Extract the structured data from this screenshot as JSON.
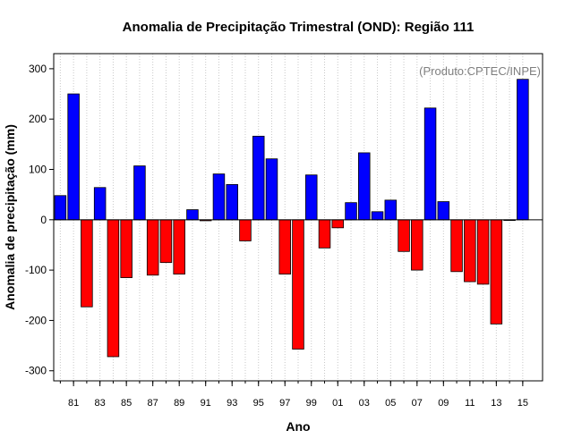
{
  "chart_data": {
    "type": "bar",
    "title": "Anomalia de Precipitação Trimestral (OND): Região 111",
    "xlabel": "Ano",
    "ylabel": "Anomalia de precipitação (mm)",
    "annotation": "(Produto:CPTEC/INPE)",
    "ylim": [
      -320,
      330
    ],
    "yticks": [
      -300,
      -200,
      -100,
      0,
      100,
      200,
      300
    ],
    "xlim": [
      1979.5,
      2016.5
    ],
    "xticks": [
      {
        "year": 1981,
        "label": "81"
      },
      {
        "year": 1983,
        "label": "83"
      },
      {
        "year": 1985,
        "label": "85"
      },
      {
        "year": 1987,
        "label": "87"
      },
      {
        "year": 1989,
        "label": "89"
      },
      {
        "year": 1991,
        "label": "91"
      },
      {
        "year": 1993,
        "label": "93"
      },
      {
        "year": 1995,
        "label": "95"
      },
      {
        "year": 1997,
        "label": "97"
      },
      {
        "year": 1999,
        "label": "99"
      },
      {
        "year": 2001,
        "label": "01"
      },
      {
        "year": 2003,
        "label": "03"
      },
      {
        "year": 2005,
        "label": "05"
      },
      {
        "year": 2007,
        "label": "07"
      },
      {
        "year": 2009,
        "label": "09"
      },
      {
        "year": 2011,
        "label": "11"
      },
      {
        "year": 2013,
        "label": "13"
      },
      {
        "year": 2015,
        "label": "15"
      }
    ],
    "years": [
      1980,
      1981,
      1982,
      1983,
      1984,
      1985,
      1986,
      1987,
      1988,
      1989,
      1990,
      1991,
      1992,
      1993,
      1994,
      1995,
      1996,
      1997,
      1998,
      1999,
      2000,
      2001,
      2002,
      2003,
      2004,
      2005,
      2006,
      2007,
      2008,
      2009,
      2010,
      2011,
      2012,
      2013,
      2014,
      2015
    ],
    "values": [
      48,
      250,
      -173,
      64,
      -272,
      -115,
      107,
      -110,
      -85,
      -108,
      20,
      -2,
      91,
      70,
      -42,
      166,
      121,
      -108,
      -257,
      89,
      -56,
      -16,
      34,
      133,
      16,
      39,
      -63,
      -100,
      222,
      36,
      -103,
      -123,
      -128,
      -207,
      0,
      279
    ],
    "colors": {
      "positive": "#0000ff",
      "negative": "#ff0000",
      "grid": "#c8c8c8",
      "zero_line": "#000000"
    }
  }
}
